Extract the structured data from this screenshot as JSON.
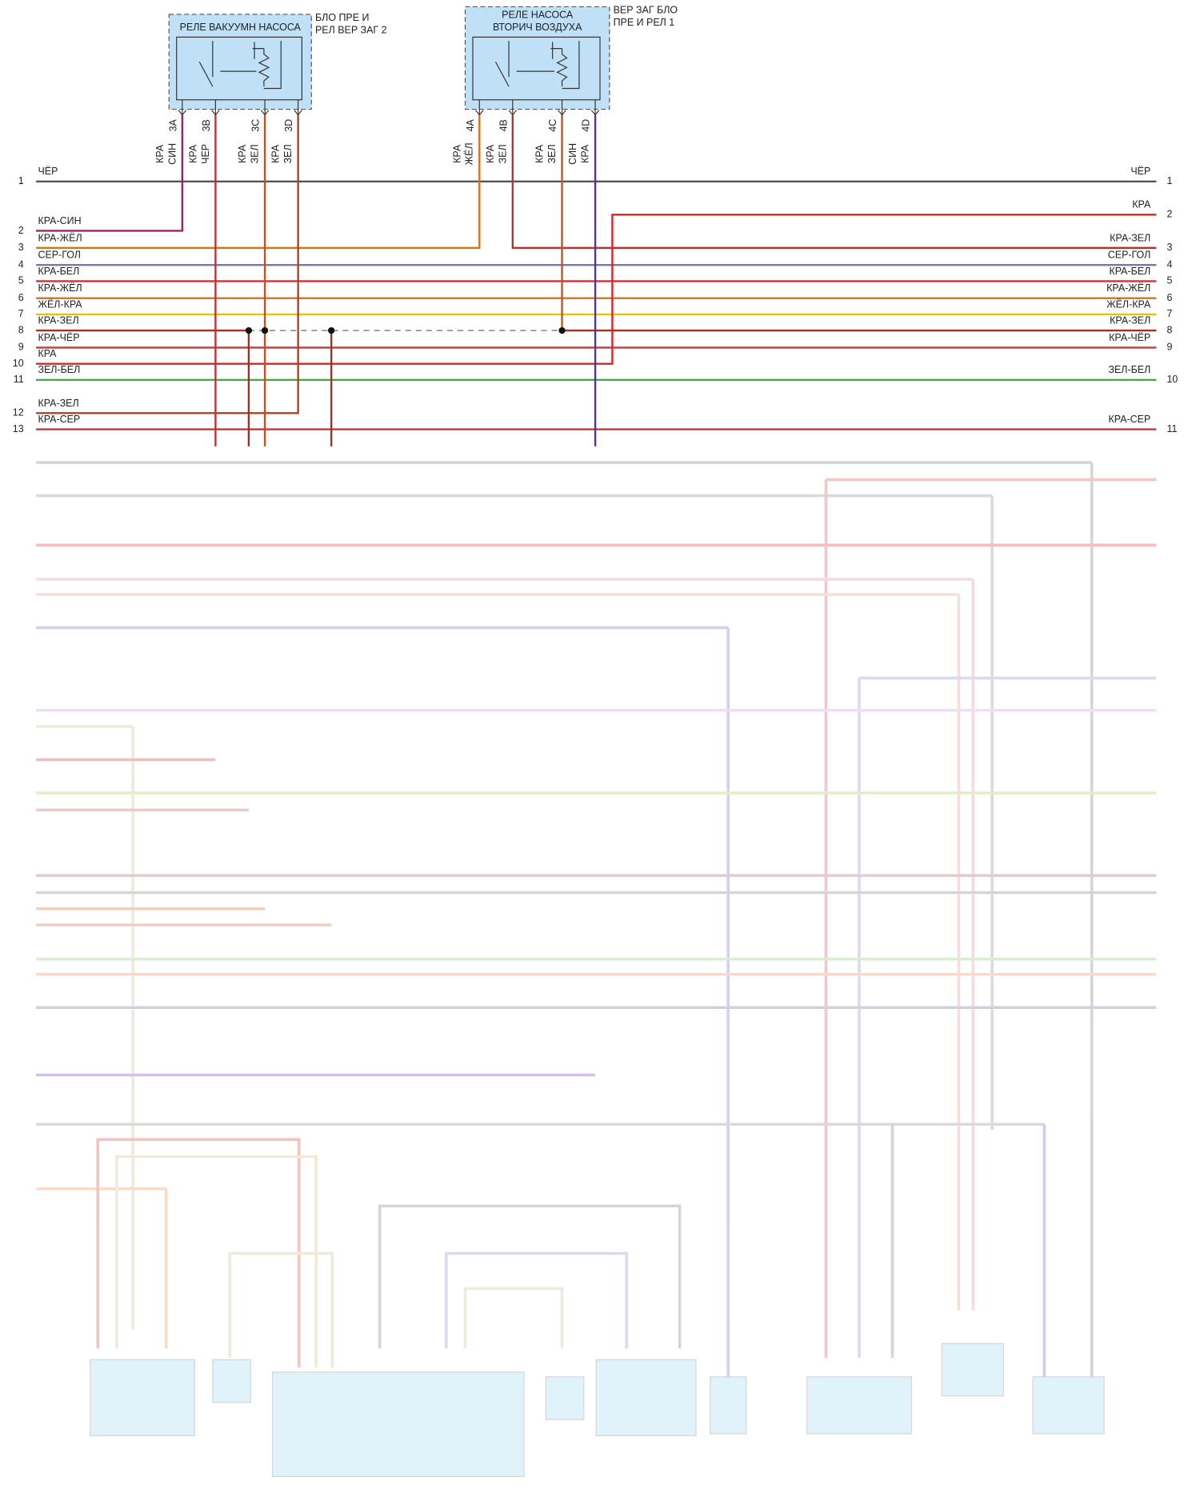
{
  "relays": [
    {
      "title": [
        "РЕЛЕ ВАКУУМН НАСОСА"
      ],
      "note": [
        "БЛО ПРЕ И",
        "РЕЛ ВЕР ЗАГ 2"
      ],
      "pins": [
        {
          "id": "3A",
          "wire": [
            "КРА",
            "СИН"
          ]
        },
        {
          "id": "3B",
          "wire": [
            "КРА",
            "ЧЕР"
          ]
        },
        {
          "id": "3C",
          "wire": [
            "КРА",
            "ЗЕЛ"
          ]
        },
        {
          "id": "3D",
          "wire": [
            "КРА",
            "ЗЕЛ"
          ]
        }
      ]
    },
    {
      "title": [
        "РЕЛЕ НАСОСА",
        "ВТОРИЧ ВОЗДУХА"
      ],
      "note": [
        "ВЕР ЗАГ БЛО",
        "ПРЕ И РЕЛ 1"
      ],
      "pins": [
        {
          "id": "4A",
          "wire": [
            "КРА",
            "ЖЁЛ"
          ]
        },
        {
          "id": "4B",
          "wire": [
            "КРА",
            "ЗЕЛ"
          ]
        },
        {
          "id": "4C",
          "wire": [
            "КРА",
            "ЗЕЛ"
          ]
        },
        {
          "id": "4D",
          "wire": [
            "СИН",
            "КРА"
          ]
        }
      ]
    }
  ],
  "left_connector": [
    {
      "num": 1,
      "label": "ЧЁР"
    },
    {
      "num": 2,
      "label": "КРА-СИН"
    },
    {
      "num": 3,
      "label": "КРА-ЖЁЛ"
    },
    {
      "num": 4,
      "label": "СЕР-ГОЛ"
    },
    {
      "num": 5,
      "label": "КРА-БЕЛ"
    },
    {
      "num": 6,
      "label": "КРА-ЖЁЛ"
    },
    {
      "num": 7,
      "label": "ЖЁЛ-КРА"
    },
    {
      "num": 8,
      "label": "КРА-ЗЕЛ"
    },
    {
      "num": 9,
      "label": "КРА-ЧЁР"
    },
    {
      "num": 10,
      "label": "КРА"
    },
    {
      "num": 11,
      "label": "ЗЕЛ-БЕЛ"
    },
    {
      "num": 12,
      "label": "КРА-ЗЕЛ"
    },
    {
      "num": 13,
      "label": "КРА-СЕР"
    }
  ],
  "right_connector": [
    {
      "num": 1,
      "label": "ЧЁР"
    },
    {
      "num": 2,
      "label": "КРА"
    },
    {
      "num": 3,
      "label": "КРА-ЗЕЛ"
    },
    {
      "num": 4,
      "label": "СЕР-ГОЛ"
    },
    {
      "num": 5,
      "label": "КРА-БЕЛ"
    },
    {
      "num": 6,
      "label": "КРА-ЖЁЛ"
    },
    {
      "num": 7,
      "label": "ЖЁЛ-КРА"
    },
    {
      "num": 8,
      "label": "КРА-ЗЕЛ"
    },
    {
      "num": 9,
      "label": "КРА-ЧЁР"
    },
    {
      "num": 10,
      "label": "ЗЕЛ-БЕЛ"
    },
    {
      "num": 11,
      "label": "КРА-СЕР"
    }
  ]
}
